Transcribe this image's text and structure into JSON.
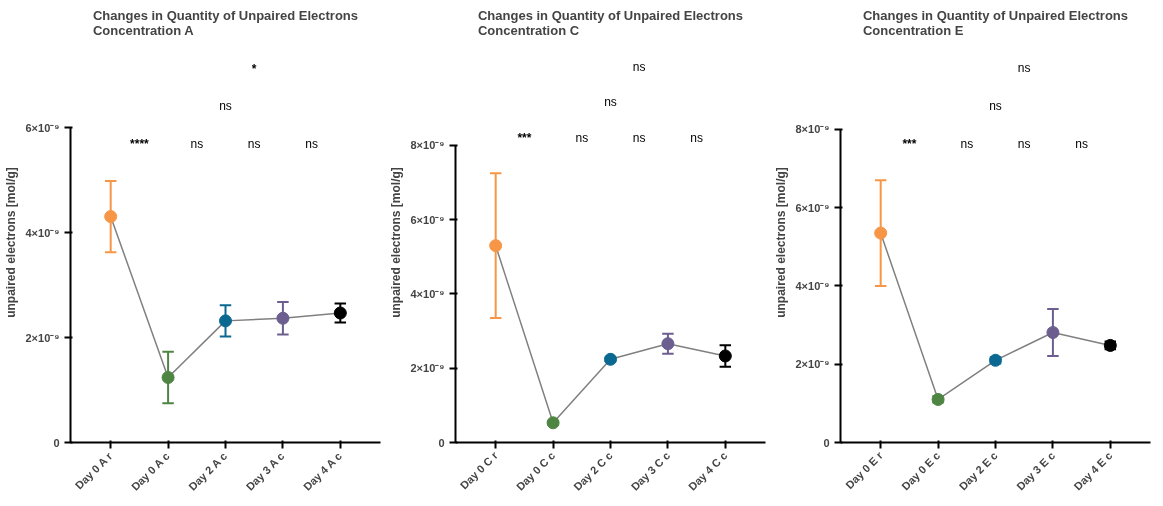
{
  "chart_data": [
    {
      "type": "line",
      "title": "Changes in Quantity of Unpaired Electrons\nConcentration A",
      "ylabel": "unpaired electrons [mol/g]",
      "categories": [
        "Day 0 A r",
        "Day 0 A c",
        "Day 2 A c",
        "Day 3 A c",
        "Day 4 A c"
      ],
      "series": [
        {
          "color": "#808080",
          "colors": [
            "#f79646",
            "#4e8542",
            "#0a6891",
            "#6c5e8f",
            "#000000"
          ],
          "values": [
            4.31e-09,
            1.24e-09,
            2.32e-09,
            2.37e-09,
            2.47e-09
          ],
          "errors": [
            6.8e-10,
            4.9e-10,
            3e-10,
            3.1e-10,
            1.8e-10
          ]
        }
      ],
      "ylim": [
        0,
        6e-09
      ],
      "yticks": [
        0,
        {
          "value": 2e-09,
          "label": "2×10⁻⁹"
        },
        {
          "value": 4e-09,
          "label": "4×10⁻⁹"
        },
        {
          "value": 6e-09,
          "label": "6×10⁻⁹"
        }
      ],
      "marker": "circle",
      "grid": false,
      "annotations": [
        "****",
        "ns",
        "ns",
        "ns",
        "ns",
        "*"
      ]
    },
    {
      "type": "line",
      "title": "Changes in Quantity of Unpaired Electrons\nConcentration C",
      "ylabel": "unpaired electrons [mol/g]",
      "categories": [
        "Day 0 C r",
        "Day 0 C c",
        "Day 2 C c",
        "Day 3 C c",
        "Day 4 C c"
      ],
      "series": [
        {
          "color": "#808080",
          "colors": [
            "#f79646",
            "#4e8542",
            "#0a6891",
            "#6c5e8f",
            "#000000"
          ],
          "values": [
            5.3e-09,
            5.3e-10,
            2.24e-09,
            2.66e-09,
            2.33e-09
          ],
          "errors": [
            1.95e-09,
            5e-11,
            5e-11,
            2.7e-10,
            2.9e-10
          ]
        }
      ],
      "ylim": [
        0,
        8e-09
      ],
      "yticks": [
        0,
        {
          "value": 2e-09,
          "label": "2×10⁻⁹"
        },
        {
          "value": 4e-09,
          "label": "4×10⁻⁹"
        },
        {
          "value": 6e-09,
          "label": "6×10⁻⁹"
        },
        {
          "value": 8e-09,
          "label": "8×10⁻⁹"
        }
      ],
      "marker": "circle",
      "grid": false,
      "annotations": [
        "***",
        "ns",
        "ns",
        "ns",
        "ns",
        "ns"
      ]
    },
    {
      "type": "line",
      "title": "Changes in Quantity of Unpaired Electrons\nConcentration E",
      "ylabel": "unpaired electrons [mol/g]",
      "categories": [
        "Day 0 E r",
        "Day 0 E c",
        "Day 2 E c",
        "Day 3 E c",
        "Day 4 E c"
      ],
      "series": [
        {
          "color": "#808080",
          "colors": [
            "#f79646",
            "#4e8542",
            "#0a6891",
            "#6c5e8f",
            "#000000"
          ],
          "values": [
            5.35e-09,
            1.1e-09,
            2.1e-09,
            2.81e-09,
            2.48e-09
          ],
          "errors": [
            1.35e-09,
            8e-11,
            8e-11,
            6e-10,
            1e-10
          ]
        }
      ],
      "ylim": [
        0,
        8e-09
      ],
      "yticks": [
        0,
        {
          "value": 2e-09,
          "label": "2×10⁻⁹"
        },
        {
          "value": 4e-09,
          "label": "4×10⁻⁹"
        },
        {
          "value": 6e-09,
          "label": "6×10⁻⁹"
        },
        {
          "value": 8e-09,
          "label": "8×10⁻⁹"
        }
      ],
      "marker": "circle",
      "grid": false,
      "annotations": [
        "***",
        "ns",
        "ns",
        "ns",
        "ns",
        "ns"
      ]
    }
  ]
}
